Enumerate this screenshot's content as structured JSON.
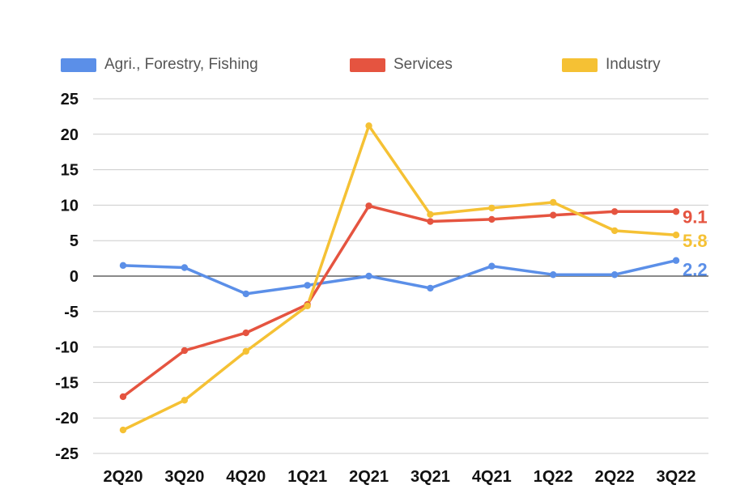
{
  "chart_data": {
    "type": "line",
    "title": "",
    "xlabel": "",
    "ylabel": "",
    "categories": [
      "2Q20",
      "3Q20",
      "4Q20",
      "1Q21",
      "2Q21",
      "3Q21",
      "4Q21",
      "1Q22",
      "2Q22",
      "3Q22"
    ],
    "y_ticks": [
      "25",
      "20",
      "15",
      "10",
      "5",
      "0",
      "-5",
      "-10",
      "-15",
      "-20",
      "-25"
    ],
    "ylim": [
      -25,
      25
    ],
    "grid": true,
    "legend_position": "top",
    "series": [
      {
        "name": "Agri., Forestry, Fishing",
        "color": "#5b8fe8",
        "values": [
          1.5,
          1.2,
          -2.5,
          -1.3,
          0.0,
          -1.7,
          1.4,
          0.2,
          0.2,
          2.2
        ],
        "end_label": "2.2"
      },
      {
        "name": "Services",
        "color": "#e55440",
        "values": [
          -17.0,
          -10.5,
          -8.0,
          -4.0,
          9.9,
          7.7,
          8.0,
          8.6,
          9.1,
          9.1
        ],
        "end_label": "9.1"
      },
      {
        "name": "Industry",
        "color": "#f5c134",
        "values": [
          -21.7,
          -17.5,
          -10.6,
          -4.2,
          21.2,
          8.7,
          9.6,
          10.4,
          6.4,
          5.8
        ],
        "end_label": "5.8"
      }
    ]
  }
}
